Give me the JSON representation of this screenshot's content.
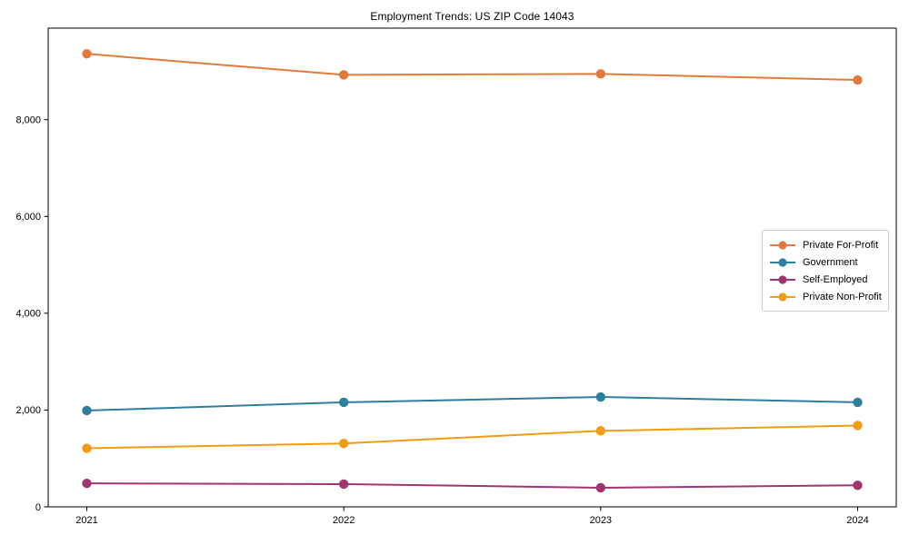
{
  "chart_data": {
    "type": "line",
    "title": "Employment Trends: US ZIP Code 14043",
    "xlabel": "",
    "ylabel": "",
    "x": [
      2021,
      2022,
      2023,
      2024
    ],
    "x_tick_labels": [
      "2021",
      "2022",
      "2023",
      "2024"
    ],
    "y_ticks": [
      0,
      2000,
      4000,
      6000,
      8000
    ],
    "y_tick_labels": [
      "0",
      "2,000",
      "4,000",
      "6,000",
      "8,000"
    ],
    "ylim": [
      0,
      9890
    ],
    "grid": false,
    "legend_position": "center right",
    "marker": "circle",
    "series": [
      {
        "name": "Private For-Profit",
        "color": "#E17A3D",
        "values": [
          9360,
          8925,
          8945,
          8820
        ]
      },
      {
        "name": "Government",
        "color": "#2E7F9E",
        "values": [
          1990,
          2160,
          2270,
          2160
        ]
      },
      {
        "name": "Self-Employed",
        "color": "#A23571",
        "values": [
          485,
          470,
          395,
          445
        ]
      },
      {
        "name": "Private Non-Profit",
        "color": "#F09D12",
        "values": [
          1210,
          1310,
          1570,
          1680
        ]
      }
    ]
  }
}
